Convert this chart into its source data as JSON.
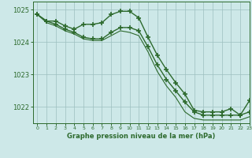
{
  "xlabel": "Graphe pression niveau de la mer (hPa)",
  "ylim": [
    1021.5,
    1025.25
  ],
  "xlim": [
    -0.5,
    23
  ],
  "yticks": [
    1022,
    1023,
    1024,
    1025
  ],
  "xticks": [
    0,
    1,
    2,
    3,
    4,
    5,
    6,
    7,
    8,
    9,
    10,
    11,
    12,
    13,
    14,
    15,
    16,
    17,
    18,
    19,
    20,
    21,
    22,
    23
  ],
  "bg_color": "#cde8e8",
  "line_color": "#2d6a2d",
  "grid_color": "#9dbfbf",
  "line_arc": [
    1024.85,
    1024.65,
    1024.65,
    1024.5,
    1024.4,
    1024.55,
    1024.55,
    1024.6,
    1024.85,
    1024.95,
    1024.95,
    1024.75,
    1024.15,
    1023.6,
    1023.15,
    1022.75,
    1022.4,
    1021.9,
    1021.85,
    1021.85,
    1021.85,
    1021.95,
    1021.75,
    1022.2
  ],
  "line_mid": [
    1024.85,
    1024.65,
    1024.55,
    1024.4,
    1024.3,
    1024.15,
    1024.1,
    1024.1,
    1024.3,
    1024.45,
    1024.45,
    1024.35,
    1023.85,
    1023.3,
    1022.85,
    1022.5,
    1022.15,
    1021.85,
    1021.75,
    1021.75,
    1021.75,
    1021.75,
    1021.75,
    1021.85
  ],
  "line_low": [
    1024.85,
    1024.6,
    1024.5,
    1024.35,
    1024.25,
    1024.1,
    1024.05,
    1024.05,
    1024.2,
    1024.35,
    1024.3,
    1024.2,
    1023.7,
    1023.1,
    1022.65,
    1022.3,
    1021.85,
    1021.65,
    1021.6,
    1021.6,
    1021.6,
    1021.6,
    1021.6,
    1021.7
  ]
}
